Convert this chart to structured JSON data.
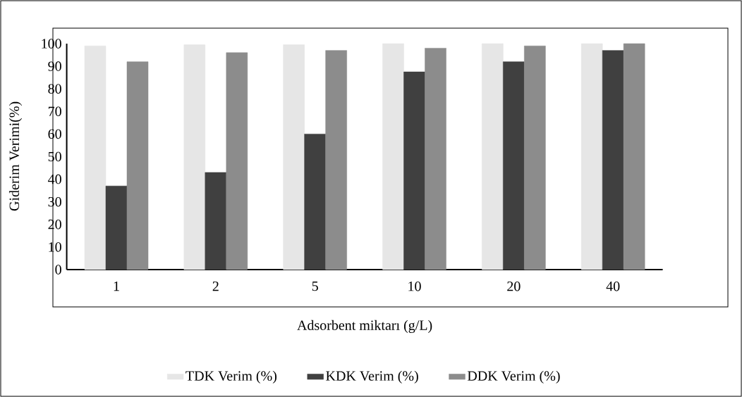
{
  "chart_data": {
    "type": "bar",
    "xlabel": "Adsorbent miktarı (g/L)",
    "ylabel": "Giderim Verimi(%)",
    "categories": [
      "1",
      "2",
      "5",
      "10",
      "20",
      "40"
    ],
    "series": [
      {
        "name": "TDK Verim (%)",
        "color": "#e6e6e6",
        "values": [
          99,
          99.5,
          99.5,
          100,
          100,
          100
        ]
      },
      {
        "name": "KDK Verim (%)",
        "color": "#404040",
        "values": [
          37,
          43,
          60,
          87.5,
          92,
          97
        ]
      },
      {
        "name": "DDK Verim (%)",
        "color": "#8c8c8c",
        "values": [
          92,
          96,
          97,
          98,
          99,
          100
        ]
      }
    ],
    "ylim": [
      0,
      100
    ],
    "yticks": [
      0,
      10,
      20,
      30,
      40,
      50,
      60,
      70,
      80,
      90,
      100
    ],
    "grid": false,
    "legend": "bottom"
  }
}
